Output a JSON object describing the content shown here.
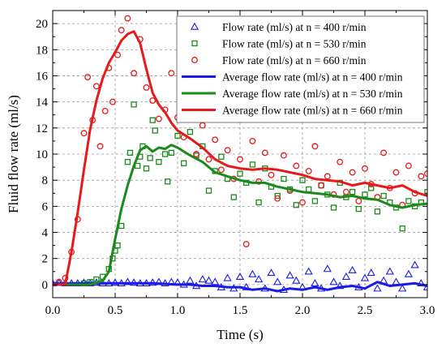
{
  "chart_data": {
    "type": "scatter",
    "xlabel": "Time (s)",
    "ylabel": "Fluid flow rate (ml/s)",
    "xlim": [
      0,
      3.0
    ],
    "ylim": [
      -1,
      21
    ],
    "x_ticks": [
      "0.0",
      "0.5",
      "1.0",
      "1.5",
      "2.0",
      "2.5",
      "3.0"
    ],
    "y_ticks": [
      "0",
      "2",
      "4",
      "6",
      "8",
      "10",
      "12",
      "14",
      "16",
      "18",
      "20"
    ],
    "grid": true,
    "legend_position": "top-right",
    "colors": {
      "n400": "#1a1ae6",
      "n530": "#1a8a1a",
      "n660": "#e61a1a"
    },
    "series": [
      {
        "name": "Flow rate (ml/s) at n = 400 r/min",
        "kind": "scatter",
        "marker": "triangle",
        "color": "#1a1ae6",
        "points": [
          [
            0.0,
            0.1
          ],
          [
            0.05,
            0.15
          ],
          [
            0.1,
            0.1
          ],
          [
            0.15,
            0.1
          ],
          [
            0.2,
            0.1
          ],
          [
            0.25,
            0.15
          ],
          [
            0.3,
            0.1
          ],
          [
            0.35,
            0.15
          ],
          [
            0.4,
            0.1
          ],
          [
            0.45,
            0.1
          ],
          [
            0.5,
            0.15
          ],
          [
            0.55,
            0.1
          ],
          [
            0.6,
            0.2
          ],
          [
            0.65,
            0.15
          ],
          [
            0.7,
            0.1
          ],
          [
            0.75,
            0.1
          ],
          [
            0.8,
            0.15
          ],
          [
            0.85,
            0.2
          ],
          [
            0.9,
            0.1
          ],
          [
            0.95,
            0.2
          ],
          [
            1.0,
            0.15
          ],
          [
            1.05,
            0.0
          ],
          [
            1.1,
            0.3
          ],
          [
            1.15,
            -0.1
          ],
          [
            1.2,
            0.4
          ],
          [
            1.25,
            0.3
          ],
          [
            1.3,
            0.2
          ],
          [
            1.35,
            -0.2
          ],
          [
            1.4,
            0.5
          ],
          [
            1.45,
            -0.3
          ],
          [
            1.5,
            0.6
          ],
          [
            1.55,
            -0.2
          ],
          [
            1.6,
            0.8
          ],
          [
            1.65,
            0.4
          ],
          [
            1.7,
            -0.3
          ],
          [
            1.75,
            0.9
          ],
          [
            1.8,
            0.2
          ],
          [
            1.85,
            -0.4
          ],
          [
            1.9,
            0.7
          ],
          [
            1.95,
            0.3
          ],
          [
            2.0,
            -0.2
          ],
          [
            2.05,
            1.0
          ],
          [
            2.1,
            0.1
          ],
          [
            2.15,
            -0.3
          ],
          [
            2.2,
            1.2
          ],
          [
            2.25,
            0.2
          ],
          [
            2.3,
            -0.1
          ],
          [
            2.35,
            0.6
          ],
          [
            2.4,
            1.1
          ],
          [
            2.45,
            -0.2
          ],
          [
            2.5,
            0.5
          ],
          [
            2.55,
            0.9
          ],
          [
            2.6,
            -0.3
          ],
          [
            2.65,
            0.3
          ],
          [
            2.7,
            1.0
          ],
          [
            2.75,
            0.2
          ],
          [
            2.8,
            -0.3
          ],
          [
            2.85,
            0.8
          ],
          [
            2.9,
            1.5
          ],
          [
            2.95,
            0.1
          ],
          [
            3.0,
            -0.2
          ]
        ]
      },
      {
        "name": "Flow rate (ml/s) at n = 530 r/min",
        "kind": "scatter",
        "marker": "square",
        "color": "#1a8a1a",
        "points": [
          [
            0.25,
            0.1
          ],
          [
            0.3,
            0.2
          ],
          [
            0.35,
            0.4
          ],
          [
            0.4,
            0.6
          ],
          [
            0.45,
            1.2
          ],
          [
            0.48,
            2.0
          ],
          [
            0.5,
            2.6
          ],
          [
            0.52,
            3.0
          ],
          [
            0.55,
            4.5
          ],
          [
            0.6,
            9.4
          ],
          [
            0.62,
            10.1
          ],
          [
            0.65,
            13.8
          ],
          [
            0.68,
            9.1
          ],
          [
            0.7,
            9.8
          ],
          [
            0.72,
            10.6
          ],
          [
            0.75,
            8.9
          ],
          [
            0.78,
            9.7
          ],
          [
            0.8,
            12.6
          ],
          [
            0.82,
            11.8
          ],
          [
            0.85,
            9.4
          ],
          [
            0.9,
            10.0
          ],
          [
            0.92,
            7.9
          ],
          [
            0.95,
            10.1
          ],
          [
            1.0,
            11.4
          ],
          [
            1.05,
            9.3
          ],
          [
            1.1,
            11.7
          ],
          [
            1.15,
            9.9
          ],
          [
            1.2,
            10.6
          ],
          [
            1.25,
            7.2
          ],
          [
            1.3,
            8.7
          ],
          [
            1.35,
            9.8
          ],
          [
            1.4,
            8.1
          ],
          [
            1.45,
            6.7
          ],
          [
            1.5,
            8.5
          ],
          [
            1.55,
            7.8
          ],
          [
            1.6,
            9.2
          ],
          [
            1.65,
            6.3
          ],
          [
            1.7,
            8.9
          ],
          [
            1.75,
            7.5
          ],
          [
            1.8,
            6.8
          ],
          [
            1.85,
            8.1
          ],
          [
            1.9,
            7.3
          ],
          [
            1.95,
            6.1
          ],
          [
            2.0,
            8.0
          ],
          [
            2.05,
            7.3
          ],
          [
            2.1,
            6.4
          ],
          [
            2.15,
            7.6
          ],
          [
            2.2,
            6.9
          ],
          [
            2.25,
            5.9
          ],
          [
            2.3,
            7.8
          ],
          [
            2.35,
            6.7
          ],
          [
            2.4,
            7.1
          ],
          [
            2.45,
            5.8
          ],
          [
            2.5,
            6.9
          ],
          [
            2.55,
            7.4
          ],
          [
            2.6,
            5.6
          ],
          [
            2.65,
            6.8
          ],
          [
            2.7,
            6.3
          ],
          [
            2.75,
            5.9
          ],
          [
            2.8,
            4.3
          ],
          [
            2.85,
            6.4
          ],
          [
            2.9,
            6.0
          ],
          [
            2.95,
            6.3
          ],
          [
            3.0,
            7.1
          ]
        ]
      },
      {
        "name": "Flow rate (ml/s) at n = 660 r/min",
        "kind": "scatter",
        "marker": "circle",
        "color": "#e61a1a",
        "points": [
          [
            0.05,
            0.2
          ],
          [
            0.1,
            0.5
          ],
          [
            0.15,
            2.5
          ],
          [
            0.2,
            5.0
          ],
          [
            0.25,
            11.6
          ],
          [
            0.28,
            15.9
          ],
          [
            0.32,
            12.6
          ],
          [
            0.35,
            15.2
          ],
          [
            0.38,
            10.6
          ],
          [
            0.42,
            13.3
          ],
          [
            0.45,
            16.6
          ],
          [
            0.48,
            14.0
          ],
          [
            0.52,
            17.6
          ],
          [
            0.55,
            19.5
          ],
          [
            0.6,
            20.4
          ],
          [
            0.65,
            16.2
          ],
          [
            0.7,
            18.8
          ],
          [
            0.75,
            15.1
          ],
          [
            0.8,
            14.1
          ],
          [
            0.85,
            12.7
          ],
          [
            0.9,
            13.4
          ],
          [
            0.95,
            16.2
          ],
          [
            1.0,
            12.8
          ],
          [
            1.05,
            11.3
          ],
          [
            1.1,
            13.3
          ],
          [
            1.15,
            10.0
          ],
          [
            1.2,
            12.2
          ],
          [
            1.25,
            9.6
          ],
          [
            1.3,
            11.1
          ],
          [
            1.35,
            8.8
          ],
          [
            1.4,
            10.3
          ],
          [
            1.45,
            8.1
          ],
          [
            1.5,
            9.6
          ],
          [
            1.55,
            3.1
          ],
          [
            1.6,
            11.0
          ],
          [
            1.65,
            7.9
          ],
          [
            1.7,
            10.1
          ],
          [
            1.75,
            8.4
          ],
          [
            1.8,
            6.6
          ],
          [
            1.85,
            9.9
          ],
          [
            1.9,
            7.2
          ],
          [
            1.95,
            9.1
          ],
          [
            2.0,
            6.3
          ],
          [
            2.05,
            8.7
          ],
          [
            2.1,
            10.6
          ],
          [
            2.15,
            7.6
          ],
          [
            2.2,
            8.3
          ],
          [
            2.25,
            6.9
          ],
          [
            2.3,
            9.4
          ],
          [
            2.35,
            7.1
          ],
          [
            2.4,
            8.6
          ],
          [
            2.45,
            6.4
          ],
          [
            2.5,
            8.9
          ],
          [
            2.55,
            7.7
          ],
          [
            2.6,
            6.7
          ],
          [
            2.65,
            10.1
          ],
          [
            2.7,
            7.4
          ],
          [
            2.75,
            8.6
          ],
          [
            2.8,
            6.1
          ],
          [
            2.85,
            9.1
          ],
          [
            2.9,
            7.0
          ],
          [
            2.95,
            8.3
          ],
          [
            3.0,
            8.5
          ]
        ]
      },
      {
        "name": "Average flow rate (ml/s) at n = 400 r/min",
        "kind": "line",
        "color": "#1a1ae6",
        "points": [
          [
            0.0,
            0.1
          ],
          [
            0.2,
            0.1
          ],
          [
            0.4,
            0.1
          ],
          [
            0.6,
            0.1
          ],
          [
            0.8,
            0.1
          ],
          [
            1.0,
            0.0
          ],
          [
            1.1,
            0.0
          ],
          [
            1.2,
            -0.1
          ],
          [
            1.3,
            -0.1
          ],
          [
            1.4,
            -0.2
          ],
          [
            1.5,
            -0.2
          ],
          [
            1.6,
            -0.4
          ],
          [
            1.7,
            -0.3
          ],
          [
            1.8,
            -0.5
          ],
          [
            1.9,
            -0.3
          ],
          [
            2.0,
            -0.4
          ],
          [
            2.1,
            -0.2
          ],
          [
            2.2,
            -0.4
          ],
          [
            2.3,
            -0.2
          ],
          [
            2.4,
            -0.1
          ],
          [
            2.5,
            -0.3
          ],
          [
            2.6,
            0.2
          ],
          [
            2.7,
            -0.1
          ],
          [
            2.8,
            0.0
          ],
          [
            2.9,
            0.1
          ],
          [
            3.0,
            -0.1
          ]
        ]
      },
      {
        "name": "Average flow rate (ml/s) at n = 530 r/min",
        "kind": "line",
        "color": "#1a8a1a",
        "points": [
          [
            0.0,
            0.0
          ],
          [
            0.3,
            0.0
          ],
          [
            0.4,
            0.3
          ],
          [
            0.45,
            1.0
          ],
          [
            0.5,
            3.5
          ],
          [
            0.55,
            5.8
          ],
          [
            0.6,
            7.6
          ],
          [
            0.65,
            9.1
          ],
          [
            0.7,
            10.3
          ],
          [
            0.75,
            10.6
          ],
          [
            0.8,
            10.2
          ],
          [
            0.85,
            10.5
          ],
          [
            0.9,
            10.4
          ],
          [
            0.95,
            10.7
          ],
          [
            1.0,
            10.5
          ],
          [
            1.1,
            9.9
          ],
          [
            1.2,
            9.4
          ],
          [
            1.3,
            8.6
          ],
          [
            1.4,
            8.3
          ],
          [
            1.5,
            8.0
          ],
          [
            1.6,
            7.8
          ],
          [
            1.7,
            7.8
          ],
          [
            1.8,
            7.5
          ],
          [
            1.9,
            7.3
          ],
          [
            2.0,
            7.1
          ],
          [
            2.1,
            7.0
          ],
          [
            2.2,
            6.9
          ],
          [
            2.3,
            6.7
          ],
          [
            2.4,
            6.8
          ],
          [
            2.5,
            6.6
          ],
          [
            2.6,
            6.5
          ],
          [
            2.7,
            6.1
          ],
          [
            2.8,
            5.9
          ],
          [
            2.9,
            6.1
          ],
          [
            3.0,
            6.2
          ]
        ]
      },
      {
        "name": "Average flow rate (ml/s) at n = 660 r/min",
        "kind": "line",
        "color": "#e61a1a",
        "points": [
          [
            0.0,
            0.0
          ],
          [
            0.1,
            0.0
          ],
          [
            0.15,
            2.5
          ],
          [
            0.2,
            5.5
          ],
          [
            0.25,
            8.8
          ],
          [
            0.3,
            11.9
          ],
          [
            0.35,
            14.1
          ],
          [
            0.4,
            15.8
          ],
          [
            0.45,
            17.0
          ],
          [
            0.5,
            17.8
          ],
          [
            0.55,
            18.7
          ],
          [
            0.6,
            19.2
          ],
          [
            0.65,
            19.4
          ],
          [
            0.7,
            18.5
          ],
          [
            0.75,
            16.5
          ],
          [
            0.8,
            14.7
          ],
          [
            0.85,
            13.8
          ],
          [
            0.9,
            13.2
          ],
          [
            0.95,
            12.4
          ],
          [
            1.0,
            11.8
          ],
          [
            1.1,
            11.2
          ],
          [
            1.2,
            10.5
          ],
          [
            1.3,
            9.6
          ],
          [
            1.4,
            9.1
          ],
          [
            1.5,
            8.9
          ],
          [
            1.6,
            8.8
          ],
          [
            1.7,
            8.9
          ],
          [
            1.8,
            8.8
          ],
          [
            1.9,
            8.6
          ],
          [
            2.0,
            8.4
          ],
          [
            2.1,
            8.1
          ],
          [
            2.2,
            8.0
          ],
          [
            2.3,
            7.9
          ],
          [
            2.4,
            7.6
          ],
          [
            2.5,
            7.8
          ],
          [
            2.6,
            7.6
          ],
          [
            2.7,
            7.4
          ],
          [
            2.8,
            7.6
          ],
          [
            2.9,
            7.1
          ],
          [
            3.0,
            6.8
          ]
        ]
      }
    ]
  }
}
